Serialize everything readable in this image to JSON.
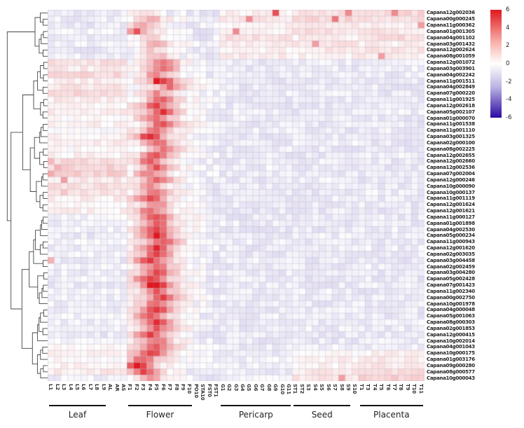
{
  "figure": {
    "kind": "clustered expression heatmap",
    "organism_gene_prefix": "Capana",
    "legend_position": "top-right",
    "dendrogram": true
  },
  "colorbar": {
    "ticks": [
      "6",
      "4",
      "2",
      "0",
      "-2",
      "-4",
      "-6"
    ],
    "max": 6,
    "min": -6,
    "color_high": "#e0181e",
    "color_mid": "#ffffff",
    "color_low": "#2c08a2"
  },
  "groups": [
    {
      "label": "Leaf",
      "columns": [
        "L1",
        "L2",
        "L3",
        "L4",
        "L5",
        "L6",
        "L7",
        "L8",
        "L9",
        "AL",
        "AR",
        "AS"
      ],
      "bar_cols": [
        0,
        8
      ]
    },
    {
      "label": "Flower",
      "columns": [
        "F1",
        "F2",
        "F3",
        "F4",
        "F5",
        "F6",
        "F7",
        "F8",
        "F9",
        "F10",
        "PO10",
        "STA10",
        "FST0",
        "FST1"
      ],
      "bar_cols": [
        12,
        21
      ]
    },
    {
      "label": "Pericarp",
      "columns": [
        "G1",
        "G2",
        "G3",
        "G4",
        "G5",
        "G6",
        "G7",
        "G8",
        "G9",
        "G10",
        "G11"
      ],
      "bar_cols": [
        26,
        36
      ]
    },
    {
      "label": "Seed",
      "columns": [
        "ST1",
        "ST2",
        "S3",
        "S4",
        "S5",
        "S6",
        "S7",
        "S8",
        "S9",
        "S10"
      ],
      "bar_cols": [
        37,
        45
      ]
    },
    {
      "label": "Placenta",
      "columns": [
        "T1",
        "T3",
        "T4",
        "T5",
        "T6",
        "T7",
        "T8",
        "T9",
        "T10",
        "T11"
      ],
      "bar_cols": [
        47,
        56
      ]
    }
  ],
  "rows": [
    "Capana12g002036",
    "Capana00g000245",
    "Capana11g000362",
    "Capana01g001305",
    "Capana04g001102",
    "Capana03g001432",
    "Capana12g002624",
    "Capana08g001059",
    "Capana12g001072",
    "Capana03g003901",
    "Capana04g002242",
    "Capana11g001511",
    "Capana04g002849",
    "Capana07g000220",
    "Capana11g001925",
    "Capana12g002618",
    "Capana05g002107",
    "Capana01g000070",
    "Capana11g001538",
    "Capana11g001110",
    "Capana03g001325",
    "Capana02g000100",
    "Capana08g002225",
    "Capana12g002655",
    "Capana12g002660",
    "Capana12g002536",
    "Capana07g002004",
    "Capana12g000246",
    "Capana10g000090",
    "Capana10g000137",
    "Capana11g001119",
    "Capana12g001624",
    "Capana12g001621",
    "Capana11g000127",
    "Capana01g001898",
    "Capana04g002530",
    "Capana05g000234",
    "Capana11g000943",
    "Capana12g001620",
    "Capana02g003035",
    "Capana03g004458",
    "Capana02g002459",
    "Capana03g004280",
    "Capana05g002428",
    "Capana07g001423",
    "Capana11g002340",
    "Capana00g002750",
    "Capana10g001978",
    "Capana04g000048",
    "Capana05g001063",
    "Capana08g000303",
    "Capana02g001853",
    "Capana12g000415",
    "Capana10g002014",
    "Capana04g001043",
    "Capana10g000175",
    "Capana01g003176",
    "Capana09g000280",
    "Capana08g000577",
    "Capana10g000043"
  ],
  "chart_data": {
    "type": "heatmap",
    "value_range": [
      -6,
      6
    ],
    "n_rows": 60,
    "n_cols": 57,
    "flower_col_range": [
      12,
      25
    ],
    "noise_sd_background": 0.35,
    "noise_sd_flower": 0.5,
    "row_profiles_legend": "[leaf, flower_base, flower_peak, pericarp, seed, placenta, peak_col]",
    "row_profiles": [
      [
        -0.5,
        0.3,
        1.5,
        0.4,
        0.8,
        1.0,
        14
      ],
      [
        -0.4,
        0.8,
        2.5,
        0.6,
        1.0,
        0.8,
        15
      ],
      [
        -0.5,
        0.5,
        3.0,
        0.3,
        0.6,
        0.5,
        14
      ],
      [
        -0.3,
        1.0,
        3.5,
        0.2,
        0.8,
        0.6,
        13
      ],
      [
        -0.5,
        0.4,
        2.0,
        0.8,
        0.4,
        0.9,
        15
      ],
      [
        -0.4,
        0.6,
        2.5,
        0.4,
        0.7,
        0.4,
        16
      ],
      [
        -0.5,
        0.3,
        1.8,
        0.3,
        0.5,
        0.7,
        15
      ],
      [
        -0.4,
        0.5,
        2.2,
        0.5,
        0.3,
        0.5,
        16
      ],
      [
        0.8,
        1.5,
        4.0,
        -0.5,
        -0.4,
        -0.5,
        17
      ],
      [
        0.5,
        1.2,
        4.5,
        -0.5,
        -0.5,
        -0.4,
        17
      ],
      [
        1.0,
        1.0,
        3.5,
        -0.4,
        -0.5,
        -0.5,
        16
      ],
      [
        0.4,
        1.5,
        5.5,
        -0.5,
        -0.4,
        -0.5,
        17
      ],
      [
        0.6,
        1.2,
        4.0,
        -0.5,
        -0.5,
        -0.5,
        18
      ],
      [
        0.9,
        1.0,
        3.2,
        -0.4,
        -0.4,
        -0.5,
        16
      ],
      [
        0.5,
        1.4,
        4.5,
        -0.5,
        -0.5,
        -0.4,
        17
      ],
      [
        0.2,
        1.6,
        5.0,
        -0.5,
        -0.5,
        -0.5,
        16
      ],
      [
        0.4,
        1.8,
        5.5,
        -0.4,
        -0.5,
        -0.4,
        17
      ],
      [
        0.1,
        1.5,
        4.2,
        -0.5,
        -0.4,
        -0.5,
        16
      ],
      [
        0.3,
        1.7,
        5.0,
        -0.5,
        -0.5,
        -0.5,
        17
      ],
      [
        0.0,
        1.4,
        4.0,
        -0.4,
        -0.5,
        -0.4,
        16
      ],
      [
        0.2,
        1.8,
        5.8,
        -0.5,
        -0.5,
        -0.5,
        15
      ],
      [
        0.5,
        1.5,
        4.5,
        -0.5,
        -0.4,
        -0.5,
        16
      ],
      [
        0.1,
        1.3,
        3.8,
        -0.4,
        -0.5,
        -0.5,
        17
      ],
      [
        0.3,
        1.6,
        4.8,
        -0.5,
        -0.5,
        -0.4,
        16
      ],
      [
        0.9,
        1.4,
        4.2,
        -0.5,
        -0.4,
        -0.5,
        15
      ],
      [
        1.1,
        1.6,
        4.6,
        -0.4,
        -0.5,
        -0.5,
        16
      ],
      [
        1.2,
        1.3,
        3.8,
        -0.5,
        -0.5,
        -0.4,
        15
      ],
      [
        0.6,
        1.5,
        4.4,
        -0.5,
        -0.4,
        -0.5,
        16
      ],
      [
        0.8,
        1.2,
        3.5,
        -0.4,
        -0.5,
        -0.5,
        15
      ],
      [
        0.7,
        1.4,
        4.0,
        -0.5,
        -0.5,
        -0.4,
        16
      ],
      [
        0.4,
        1.6,
        4.8,
        -0.5,
        -0.4,
        -0.5,
        15
      ],
      [
        0.2,
        1.3,
        3.6,
        -0.4,
        -0.5,
        -0.5,
        16
      ],
      [
        0.3,
        1.5,
        4.2,
        -0.5,
        -0.5,
        -0.5,
        15
      ],
      [
        -0.2,
        1.8,
        5.0,
        -0.5,
        -0.4,
        -0.5,
        16
      ],
      [
        -0.4,
        1.5,
        4.5,
        -0.4,
        -0.5,
        -0.5,
        16
      ],
      [
        -0.3,
        2.0,
        5.5,
        -0.5,
        -0.5,
        -0.4,
        16
      ],
      [
        -0.5,
        1.8,
        6.0,
        -0.5,
        -0.4,
        -0.5,
        16
      ],
      [
        -0.2,
        1.6,
        4.8,
        -0.4,
        -0.5,
        -0.5,
        17
      ],
      [
        -0.4,
        2.0,
        5.6,
        -0.5,
        -0.5,
        -0.4,
        16
      ],
      [
        -0.3,
        1.7,
        5.0,
        -0.5,
        -0.4,
        -0.5,
        16
      ],
      [
        -0.5,
        1.9,
        5.4,
        -0.4,
        -0.5,
        -0.5,
        15
      ],
      [
        -0.2,
        1.5,
        4.4,
        -0.5,
        -0.5,
        -0.4,
        16
      ],
      [
        -0.4,
        1.8,
        5.2,
        -0.5,
        -0.4,
        -0.5,
        16
      ],
      [
        -0.3,
        2.0,
        5.8,
        -0.4,
        -0.5,
        -0.5,
        15
      ],
      [
        -0.5,
        2.2,
        6.0,
        -0.5,
        -0.5,
        -0.4,
        16
      ],
      [
        -0.2,
        1.6,
        4.6,
        -0.5,
        -0.4,
        -0.5,
        16
      ],
      [
        -0.4,
        1.8,
        5.0,
        -0.4,
        -0.5,
        -0.5,
        17
      ],
      [
        -0.3,
        1.5,
        4.4,
        -0.5,
        -0.5,
        -0.4,
        16
      ],
      [
        -0.5,
        1.9,
        5.5,
        -0.5,
        -0.4,
        -0.5,
        16
      ],
      [
        -0.2,
        1.7,
        4.8,
        -0.4,
        -0.5,
        -0.5,
        15
      ],
      [
        -0.4,
        2.0,
        5.6,
        -0.5,
        -0.5,
        -0.4,
        16
      ],
      [
        -0.3,
        1.6,
        4.5,
        -0.5,
        -0.4,
        -0.5,
        16
      ],
      [
        -0.5,
        1.8,
        5.2,
        -0.4,
        -0.5,
        -0.5,
        15
      ],
      [
        -0.2,
        1.5,
        4.2,
        -0.5,
        -0.5,
        -0.4,
        16
      ],
      [
        0.2,
        1.7,
        4.8,
        -0.5,
        -0.3,
        -0.4,
        16
      ],
      [
        0.4,
        1.9,
        5.4,
        -0.4,
        0.2,
        0.3,
        15
      ],
      [
        0.1,
        1.6,
        4.6,
        -0.3,
        0.4,
        0.5,
        14
      ],
      [
        0.3,
        2.0,
        6.0,
        -0.3,
        0.3,
        0.5,
        13
      ],
      [
        0.5,
        1.5,
        5.0,
        -0.4,
        0.5,
        0.8,
        14
      ],
      [
        -0.3,
        0.8,
        3.0,
        -0.2,
        0.6,
        1.2,
        15
      ]
    ],
    "hotspots": [
      [
        0,
        34,
        4.5
      ],
      [
        0,
        45,
        3.0
      ],
      [
        0,
        52,
        3.0
      ],
      [
        1,
        30,
        3.0
      ],
      [
        1,
        43,
        3.5
      ],
      [
        2,
        56,
        2.5
      ],
      [
        3,
        13,
        4.5
      ],
      [
        3,
        28,
        3.0
      ],
      [
        5,
        40,
        2.5
      ],
      [
        7,
        50,
        2.5
      ],
      [
        11,
        16,
        6.0
      ],
      [
        20,
        15,
        5.5
      ],
      [
        24,
        0,
        1.8
      ],
      [
        25,
        1,
        2.0
      ],
      [
        26,
        0,
        2.2
      ],
      [
        27,
        2,
        2.5
      ],
      [
        29,
        2,
        1.5
      ],
      [
        36,
        16,
        6.0
      ],
      [
        40,
        0,
        2.0
      ],
      [
        44,
        15,
        6.0
      ],
      [
        44,
        16,
        6.0
      ],
      [
        50,
        16,
        5.5
      ],
      [
        57,
        13,
        6.0
      ],
      [
        58,
        14,
        5.0
      ],
      [
        59,
        44,
        2.5
      ]
    ]
  }
}
